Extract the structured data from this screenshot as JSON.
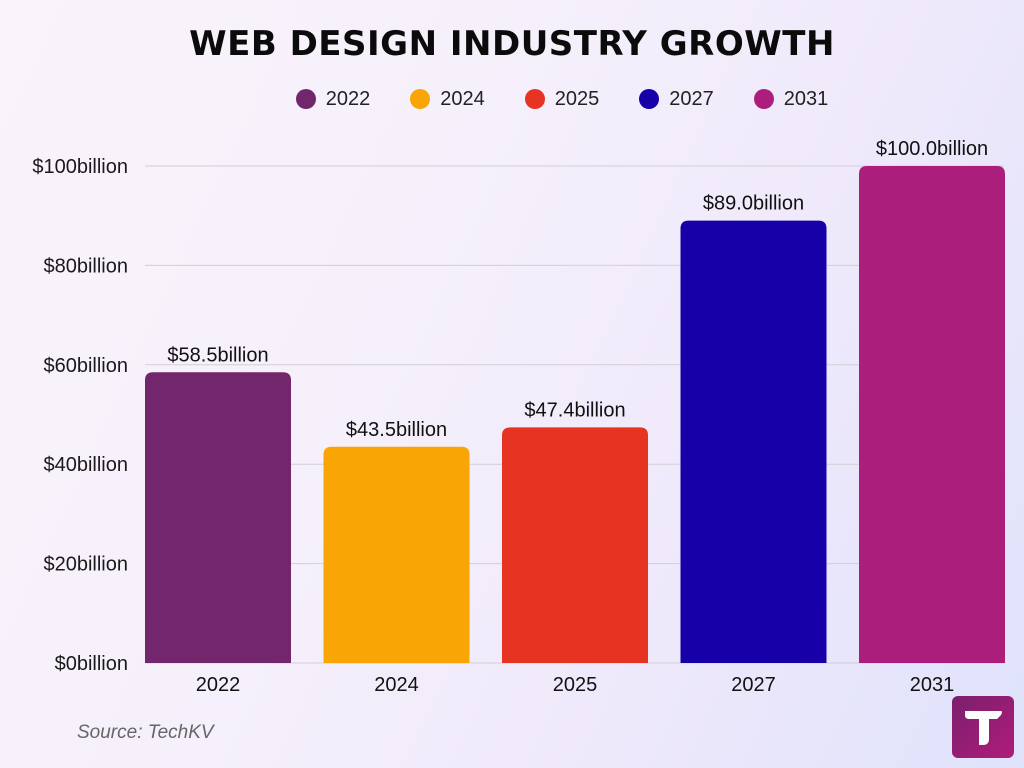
{
  "chart_data": {
    "type": "bar",
    "title": "WEB DESIGN INDUSTRY GROWTH",
    "categories": [
      "2022",
      "2024",
      "2025",
      "2027",
      "2031"
    ],
    "values": [
      58.5,
      43.5,
      47.4,
      89.0,
      100.0
    ],
    "value_labels": [
      "$58.5billion",
      "$43.5billion",
      "$47.4billion",
      "$89.0billion",
      "$100.0billion"
    ],
    "colors": [
      "#72276d",
      "#f9a506",
      "#e63322",
      "#1800a8",
      "#ab1e7c"
    ],
    "legend": [
      "2022",
      "2024",
      "2025",
      "2027",
      "2031"
    ],
    "yticks": [
      0,
      20,
      40,
      60,
      80,
      100
    ],
    "ytick_labels": [
      "$0billion",
      "$20billion",
      "$40billion",
      "$60billion",
      "$80billion",
      "$100billion"
    ],
    "ylim": [
      0,
      100
    ],
    "xlabel": "",
    "ylabel": "",
    "grid": true,
    "legend_position": "top"
  },
  "source": "Source: TechKV",
  "logo": {
    "icon": "techkv-logo-icon"
  }
}
